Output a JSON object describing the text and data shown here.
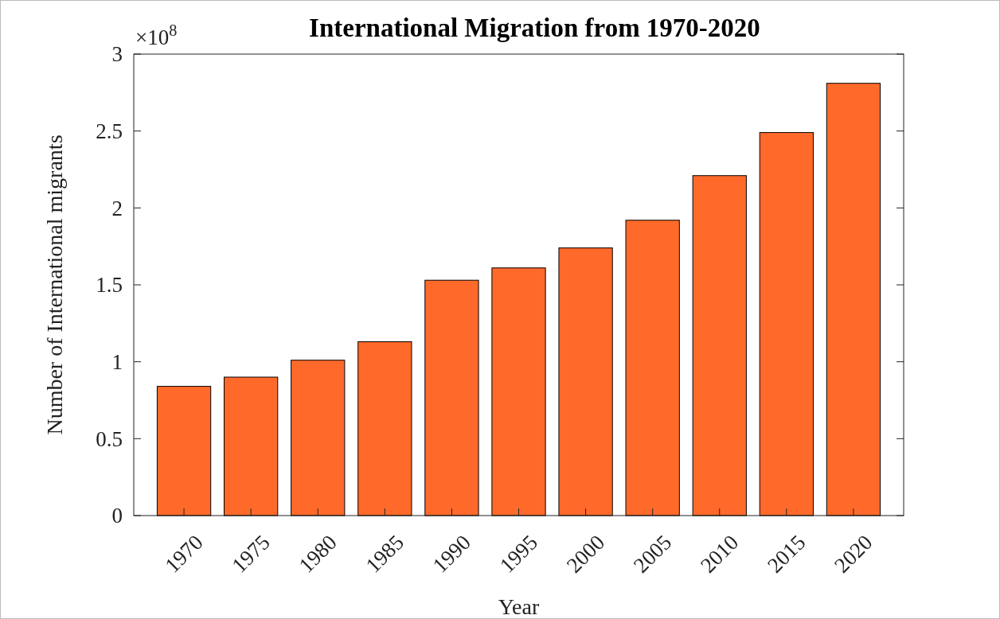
{
  "chart_data": {
    "type": "bar",
    "title": "International Migration from 1970-2020",
    "xlabel": "Year",
    "ylabel": "Number of International migrants",
    "categories": [
      "1970",
      "1975",
      "1980",
      "1985",
      "1990",
      "1995",
      "2000",
      "2005",
      "2010",
      "2015",
      "2020"
    ],
    "values": [
      0.84,
      0.9,
      1.01,
      1.13,
      1.53,
      1.61,
      1.74,
      1.92,
      2.21,
      2.49,
      2.81
    ],
    "color": "#ff6a2b",
    "ylim": [
      0,
      3
    ],
    "yticks": [
      0,
      0.5,
      1,
      1.5,
      2,
      2.5,
      3
    ],
    "grid": false,
    "annotations": [
      "×10$^{8}$"
    ]
  }
}
